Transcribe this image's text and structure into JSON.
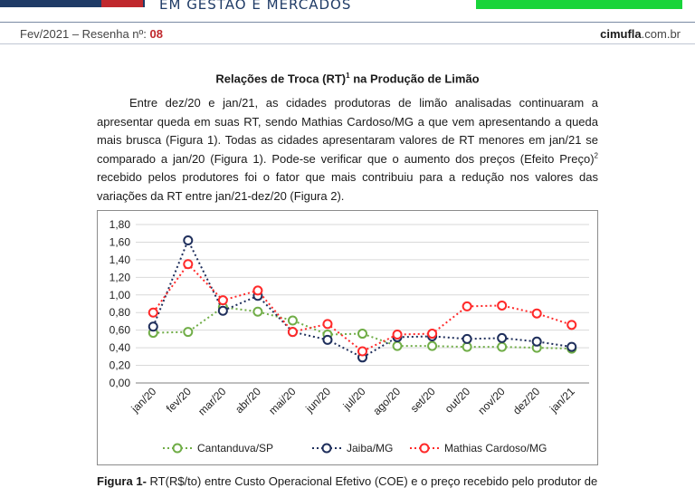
{
  "header": {
    "tagline": "EM GESTÃO E MERCADOS",
    "issue_prefix": "Fev/2021 – Resenha nº: ",
    "issue_number": "08",
    "site_bold": "cimufla",
    "site_rest": ".com.br"
  },
  "colors": {
    "navy": "#1f3b66",
    "red": "#c0282d",
    "green_bar": "#19d43a"
  },
  "article": {
    "title": "Relações de Troca (RT)",
    "title_sup": "1",
    "title_tail": " na Produção de Limão",
    "paragraph_part1": "Entre dez/20 e jan/21, as cidades produtoras de limão analisadas continuaram a apresentar queda em suas RT, sendo Mathias Cardoso/MG a que vem apresentando a queda mais brusca (Figura 1). Todas as cidades apresentaram valores de RT menores em jan/21 se comparado a jan/20 (Figura 1). Pode-se verificar que o aumento dos preços (Efeito Preço)",
    "paragraph_sup": "2",
    "paragraph_part2": " recebido pelos produtores foi o fator que mais contribuiu para a redução nos valores das variações da RT entre jan/21-dez/20 (Figura 2)."
  },
  "caption": {
    "label": "Figura 1-",
    "text": " RT(R$/to) entre Custo Operacional Efetivo (COE) e o preço recebido pelo produtor de"
  },
  "chart_data": {
    "type": "line",
    "categories": [
      "jan/20",
      "fev/20",
      "mar/20",
      "abr/20",
      "mai/20",
      "jun/20",
      "jul/20",
      "ago/20",
      "set/20",
      "out/20",
      "nov/20",
      "dez/20",
      "jan/21"
    ],
    "ylim": [
      0,
      1.8
    ],
    "yticks": [
      "0,00",
      "0,20",
      "0,40",
      "0,60",
      "0,80",
      "1,00",
      "1,20",
      "1,40",
      "1,60",
      "1,80"
    ],
    "grid": true,
    "legend_position": "bottom",
    "series": [
      {
        "name": "Cantanduva/SP",
        "color": "#70ad47",
        "values": [
          0.57,
          0.58,
          0.86,
          0.81,
          0.71,
          0.55,
          0.56,
          0.42,
          0.42,
          0.41,
          0.41,
          0.4,
          0.39
        ]
      },
      {
        "name": "Jaiba/MG",
        "color": "#1f2f5c",
        "values": [
          0.64,
          1.62,
          0.82,
          0.99,
          0.58,
          0.49,
          0.29,
          0.52,
          0.53,
          0.5,
          0.51,
          0.47,
          0.41
        ]
      },
      {
        "name": "Mathias Cardoso/MG",
        "color": "#ff2a2a",
        "values": [
          0.8,
          1.35,
          0.94,
          1.05,
          0.58,
          0.67,
          0.36,
          0.55,
          0.56,
          0.87,
          0.88,
          0.79,
          0.66
        ]
      }
    ]
  }
}
